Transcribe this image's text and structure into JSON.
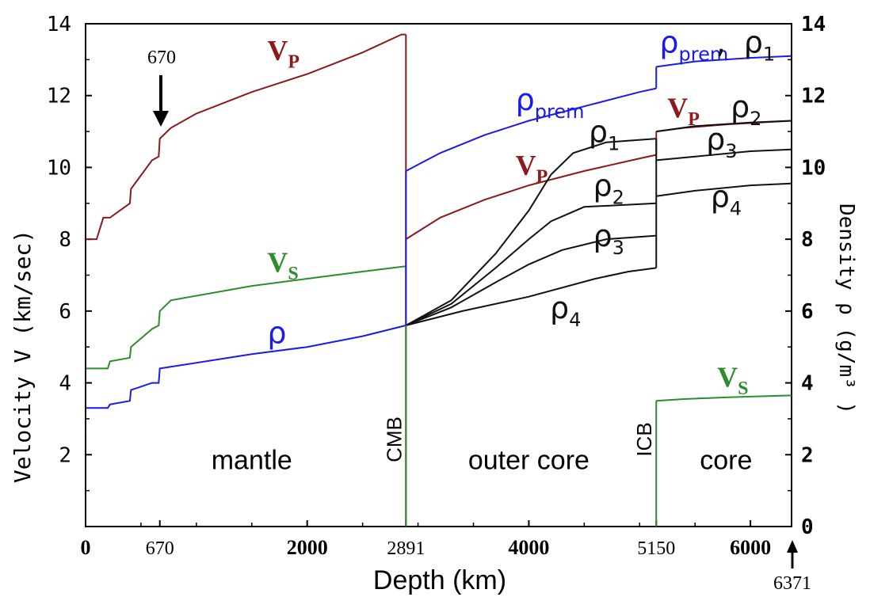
{
  "chart_data": {
    "type": "line",
    "xlabel": "Depth (km)",
    "ylabel_left": "Velocity V (km/sec)",
    "ylabel_right": "Density ρ (g/m³ )",
    "xlim": [
      0,
      6371
    ],
    "ylim_left": [
      0,
      14
    ],
    "ylim_right": [
      0,
      14
    ],
    "x_ticks": [
      {
        "value": 0,
        "label": "0",
        "style": "bold"
      },
      {
        "value": 670,
        "label": "670",
        "style": "plain"
      },
      {
        "value": 2000,
        "label": "2000",
        "style": "bold"
      },
      {
        "value": 2891,
        "label": "2891",
        "style": "plain"
      },
      {
        "value": 4000,
        "label": "4000",
        "style": "bold"
      },
      {
        "value": 5150,
        "label": "5150",
        "style": "plain"
      },
      {
        "value": 6000,
        "label": "6000",
        "style": "bold"
      }
    ],
    "x_end_label": "6371",
    "y_ticks_left": [
      "2",
      "4",
      "6",
      "8",
      "10",
      "12",
      "14"
    ],
    "y_ticks_right": [
      "0",
      "2",
      "4",
      "6",
      "8",
      "10",
      "12",
      "14"
    ],
    "boundaries": [
      {
        "depth": 2891,
        "label": "CMB"
      },
      {
        "depth": 5150,
        "label": "ICB"
      }
    ],
    "regions": [
      {
        "label": "mantle",
        "x": 1500,
        "y": 1.6
      },
      {
        "label": "outer core",
        "x": 4000,
        "y": 1.6
      },
      {
        "label": "core",
        "x": 5780,
        "y": 1.6
      }
    ],
    "arrow_670_label": "670",
    "series": [
      {
        "name": "Vp",
        "color": "#8b1a1a",
        "points": [
          [
            0,
            8.0
          ],
          [
            100,
            8.0
          ],
          [
            160,
            8.6
          ],
          [
            220,
            8.6
          ],
          [
            400,
            9.0
          ],
          [
            410,
            9.4
          ],
          [
            600,
            10.2
          ],
          [
            660,
            10.3
          ],
          [
            670,
            10.8
          ],
          [
            770,
            11.1
          ],
          [
            1000,
            11.5
          ],
          [
            1500,
            12.1
          ],
          [
            2000,
            12.6
          ],
          [
            2500,
            13.2
          ],
          [
            2850,
            13.7
          ],
          [
            2891,
            13.7
          ]
        ]
      },
      {
        "name": "Vp",
        "color": "#8b1a1a",
        "points": [
          [
            2891,
            8.0
          ],
          [
            3200,
            8.6
          ],
          [
            3600,
            9.1
          ],
          [
            4000,
            9.5
          ],
          [
            4500,
            9.9
          ],
          [
            5000,
            10.25
          ],
          [
            5150,
            10.35
          ]
        ]
      },
      {
        "name": "Vp",
        "color": "#8b1a1a",
        "points": [
          [
            5150,
            11.0
          ],
          [
            5400,
            11.1
          ],
          [
            5800,
            11.2
          ],
          [
            6371,
            11.3
          ]
        ]
      },
      {
        "name": "Vs",
        "color": "#2e8b2e",
        "points": [
          [
            0,
            4.4
          ],
          [
            200,
            4.4
          ],
          [
            220,
            4.6
          ],
          [
            400,
            4.7
          ],
          [
            410,
            5.0
          ],
          [
            600,
            5.5
          ],
          [
            660,
            5.6
          ],
          [
            670,
            6.0
          ],
          [
            770,
            6.3
          ],
          [
            1500,
            6.7
          ],
          [
            2000,
            6.9
          ],
          [
            2500,
            7.1
          ],
          [
            2891,
            7.25
          ]
        ]
      },
      {
        "name": "Vs",
        "color": "#2e8b2e",
        "points": [
          [
            5150,
            3.5
          ],
          [
            5400,
            3.55
          ],
          [
            5800,
            3.6
          ],
          [
            6371,
            3.65
          ]
        ]
      },
      {
        "name": "ρ",
        "color": "#1a1aee",
        "points": [
          [
            0,
            3.3
          ],
          [
            200,
            3.3
          ],
          [
            220,
            3.4
          ],
          [
            400,
            3.5
          ],
          [
            410,
            3.8
          ],
          [
            600,
            4.0
          ],
          [
            660,
            4.0
          ],
          [
            670,
            4.4
          ],
          [
            1500,
            4.8
          ],
          [
            2000,
            5.0
          ],
          [
            2500,
            5.3
          ],
          [
            2891,
            5.6
          ]
        ]
      },
      {
        "name": "ρprem",
        "color": "#1a1aee",
        "points": [
          [
            2891,
            9.9
          ],
          [
            3200,
            10.4
          ],
          [
            3600,
            10.9
          ],
          [
            4000,
            11.3
          ],
          [
            4500,
            11.7
          ],
          [
            5000,
            12.1
          ],
          [
            5150,
            12.2
          ]
        ]
      },
      {
        "name": "ρprem , ρ1",
        "color": "#1a1aee",
        "points": [
          [
            5150,
            12.8
          ],
          [
            5500,
            12.95
          ],
          [
            6000,
            13.05
          ],
          [
            6371,
            13.1
          ]
        ]
      },
      {
        "name": "ρ1",
        "color": "#111111",
        "points": [
          [
            2891,
            5.6
          ],
          [
            3300,
            6.3
          ],
          [
            3700,
            7.6
          ],
          [
            4000,
            8.8
          ],
          [
            4200,
            9.8
          ],
          [
            4400,
            10.4
          ],
          [
            4700,
            10.7
          ],
          [
            5150,
            10.8
          ]
        ]
      },
      {
        "name": "ρ2",
        "color": "#111111",
        "points": [
          [
            2891,
            5.6
          ],
          [
            3300,
            6.2
          ],
          [
            3700,
            7.2
          ],
          [
            4000,
            8.0
          ],
          [
            4200,
            8.5
          ],
          [
            4500,
            8.9
          ],
          [
            5150,
            9.0
          ]
        ]
      },
      {
        "name": "ρ3",
        "color": "#111111",
        "points": [
          [
            2891,
            5.6
          ],
          [
            3300,
            6.1
          ],
          [
            3700,
            6.8
          ],
          [
            4000,
            7.3
          ],
          [
            4300,
            7.7
          ],
          [
            4700,
            8.0
          ],
          [
            5150,
            8.1
          ]
        ]
      },
      {
        "name": "ρ4",
        "color": "#111111",
        "points": [
          [
            2891,
            5.6
          ],
          [
            3400,
            6.0
          ],
          [
            4000,
            6.4
          ],
          [
            4600,
            6.9
          ],
          [
            4900,
            7.1
          ],
          [
            5150,
            7.2
          ]
        ]
      },
      {
        "name": "ρ2",
        "color": "#111111",
        "points": [
          [
            5150,
            11.0
          ],
          [
            5500,
            11.15
          ],
          [
            6000,
            11.25
          ],
          [
            6371,
            11.3
          ]
        ]
      },
      {
        "name": "ρ3",
        "color": "#111111",
        "points": [
          [
            5150,
            10.2
          ],
          [
            5500,
            10.3
          ],
          [
            6000,
            10.45
          ],
          [
            6371,
            10.5
          ]
        ]
      },
      {
        "name": "ρ4",
        "color": "#111111",
        "points": [
          [
            5150,
            9.2
          ],
          [
            5500,
            9.35
          ],
          [
            6000,
            9.5
          ],
          [
            6371,
            9.55
          ]
        ]
      }
    ],
    "annotations": [
      {
        "text": "V",
        "sub": "P",
        "color": "#8b1a1a",
        "x": 1640,
        "y": 13.0
      },
      {
        "text": "V",
        "sub": "S",
        "color": "#2e8b2e",
        "x": 1640,
        "y": 7.1
      },
      {
        "text": "ρ",
        "sub": "",
        "color": "#1a1aee",
        "x": 1640,
        "y": 5.1
      },
      {
        "text": "ρ",
        "sub": "prem",
        "color": "#1a1aee",
        "x": 3880,
        "y": 11.6
      },
      {
        "text": "V",
        "sub": "P",
        "color": "#8b1a1a",
        "x": 3880,
        "y": 9.8
      },
      {
        "text": "ρ",
        "sub": "1",
        "color": "#111111",
        "x": 4540,
        "y": 10.7
      },
      {
        "text": "ρ",
        "sub": "2",
        "color": "#111111",
        "x": 4580,
        "y": 9.2
      },
      {
        "text": "ρ",
        "sub": "3",
        "color": "#111111",
        "x": 4580,
        "y": 7.8
      },
      {
        "text": "ρ",
        "sub": "4",
        "color": "#111111",
        "x": 4190,
        "y": 5.8
      },
      {
        "text": "ρ",
        "sub": "prem",
        "color": "#1a1aee",
        "x": 5180,
        "y": 13.2
      },
      {
        "text": ",",
        "sub": "",
        "color": "#111111",
        "x": 5690,
        "y": 13.2
      },
      {
        "text": "ρ",
        "sub": "1",
        "color": "#111111",
        "x": 5940,
        "y": 13.2
      },
      {
        "text": "V",
        "sub": "P",
        "color": "#8b1a1a",
        "x": 5250,
        "y": 11.4
      },
      {
        "text": "ρ",
        "sub": "2",
        "color": "#111111",
        "x": 5820,
        "y": 11.4
      },
      {
        "text": "ρ",
        "sub": "3",
        "color": "#111111",
        "x": 5600,
        "y": 10.5
      },
      {
        "text": "ρ",
        "sub": "4",
        "color": "#111111",
        "x": 5640,
        "y": 8.9
      },
      {
        "text": "V",
        "sub": "S",
        "color": "#2e8b2e",
        "x": 5700,
        "y": 3.9
      }
    ]
  }
}
